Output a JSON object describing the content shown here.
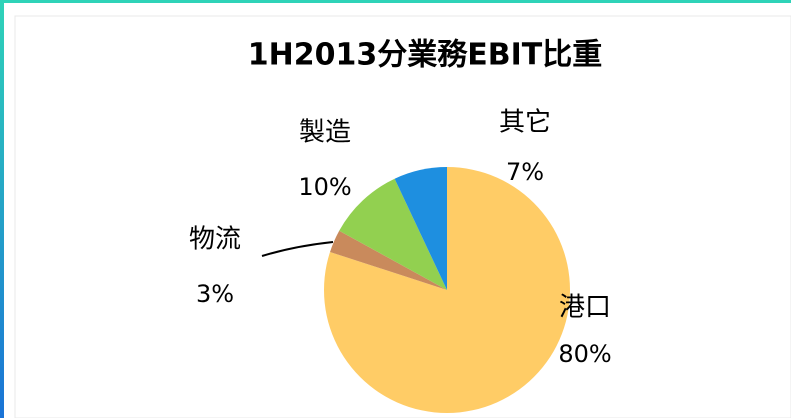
{
  "chart_data": {
    "type": "pie",
    "title": "1H2013分業務EBIT比重",
    "categories": [
      "港口",
      "物流",
      "製造",
      "其它"
    ],
    "values": [
      80,
      3,
      10,
      7
    ],
    "value_labels": [
      "80%",
      "3%",
      "10%",
      "7%"
    ],
    "colors": [
      "#FFCC66",
      "#C98A5C",
      "#92D050",
      "#1E8FE0"
    ]
  }
}
